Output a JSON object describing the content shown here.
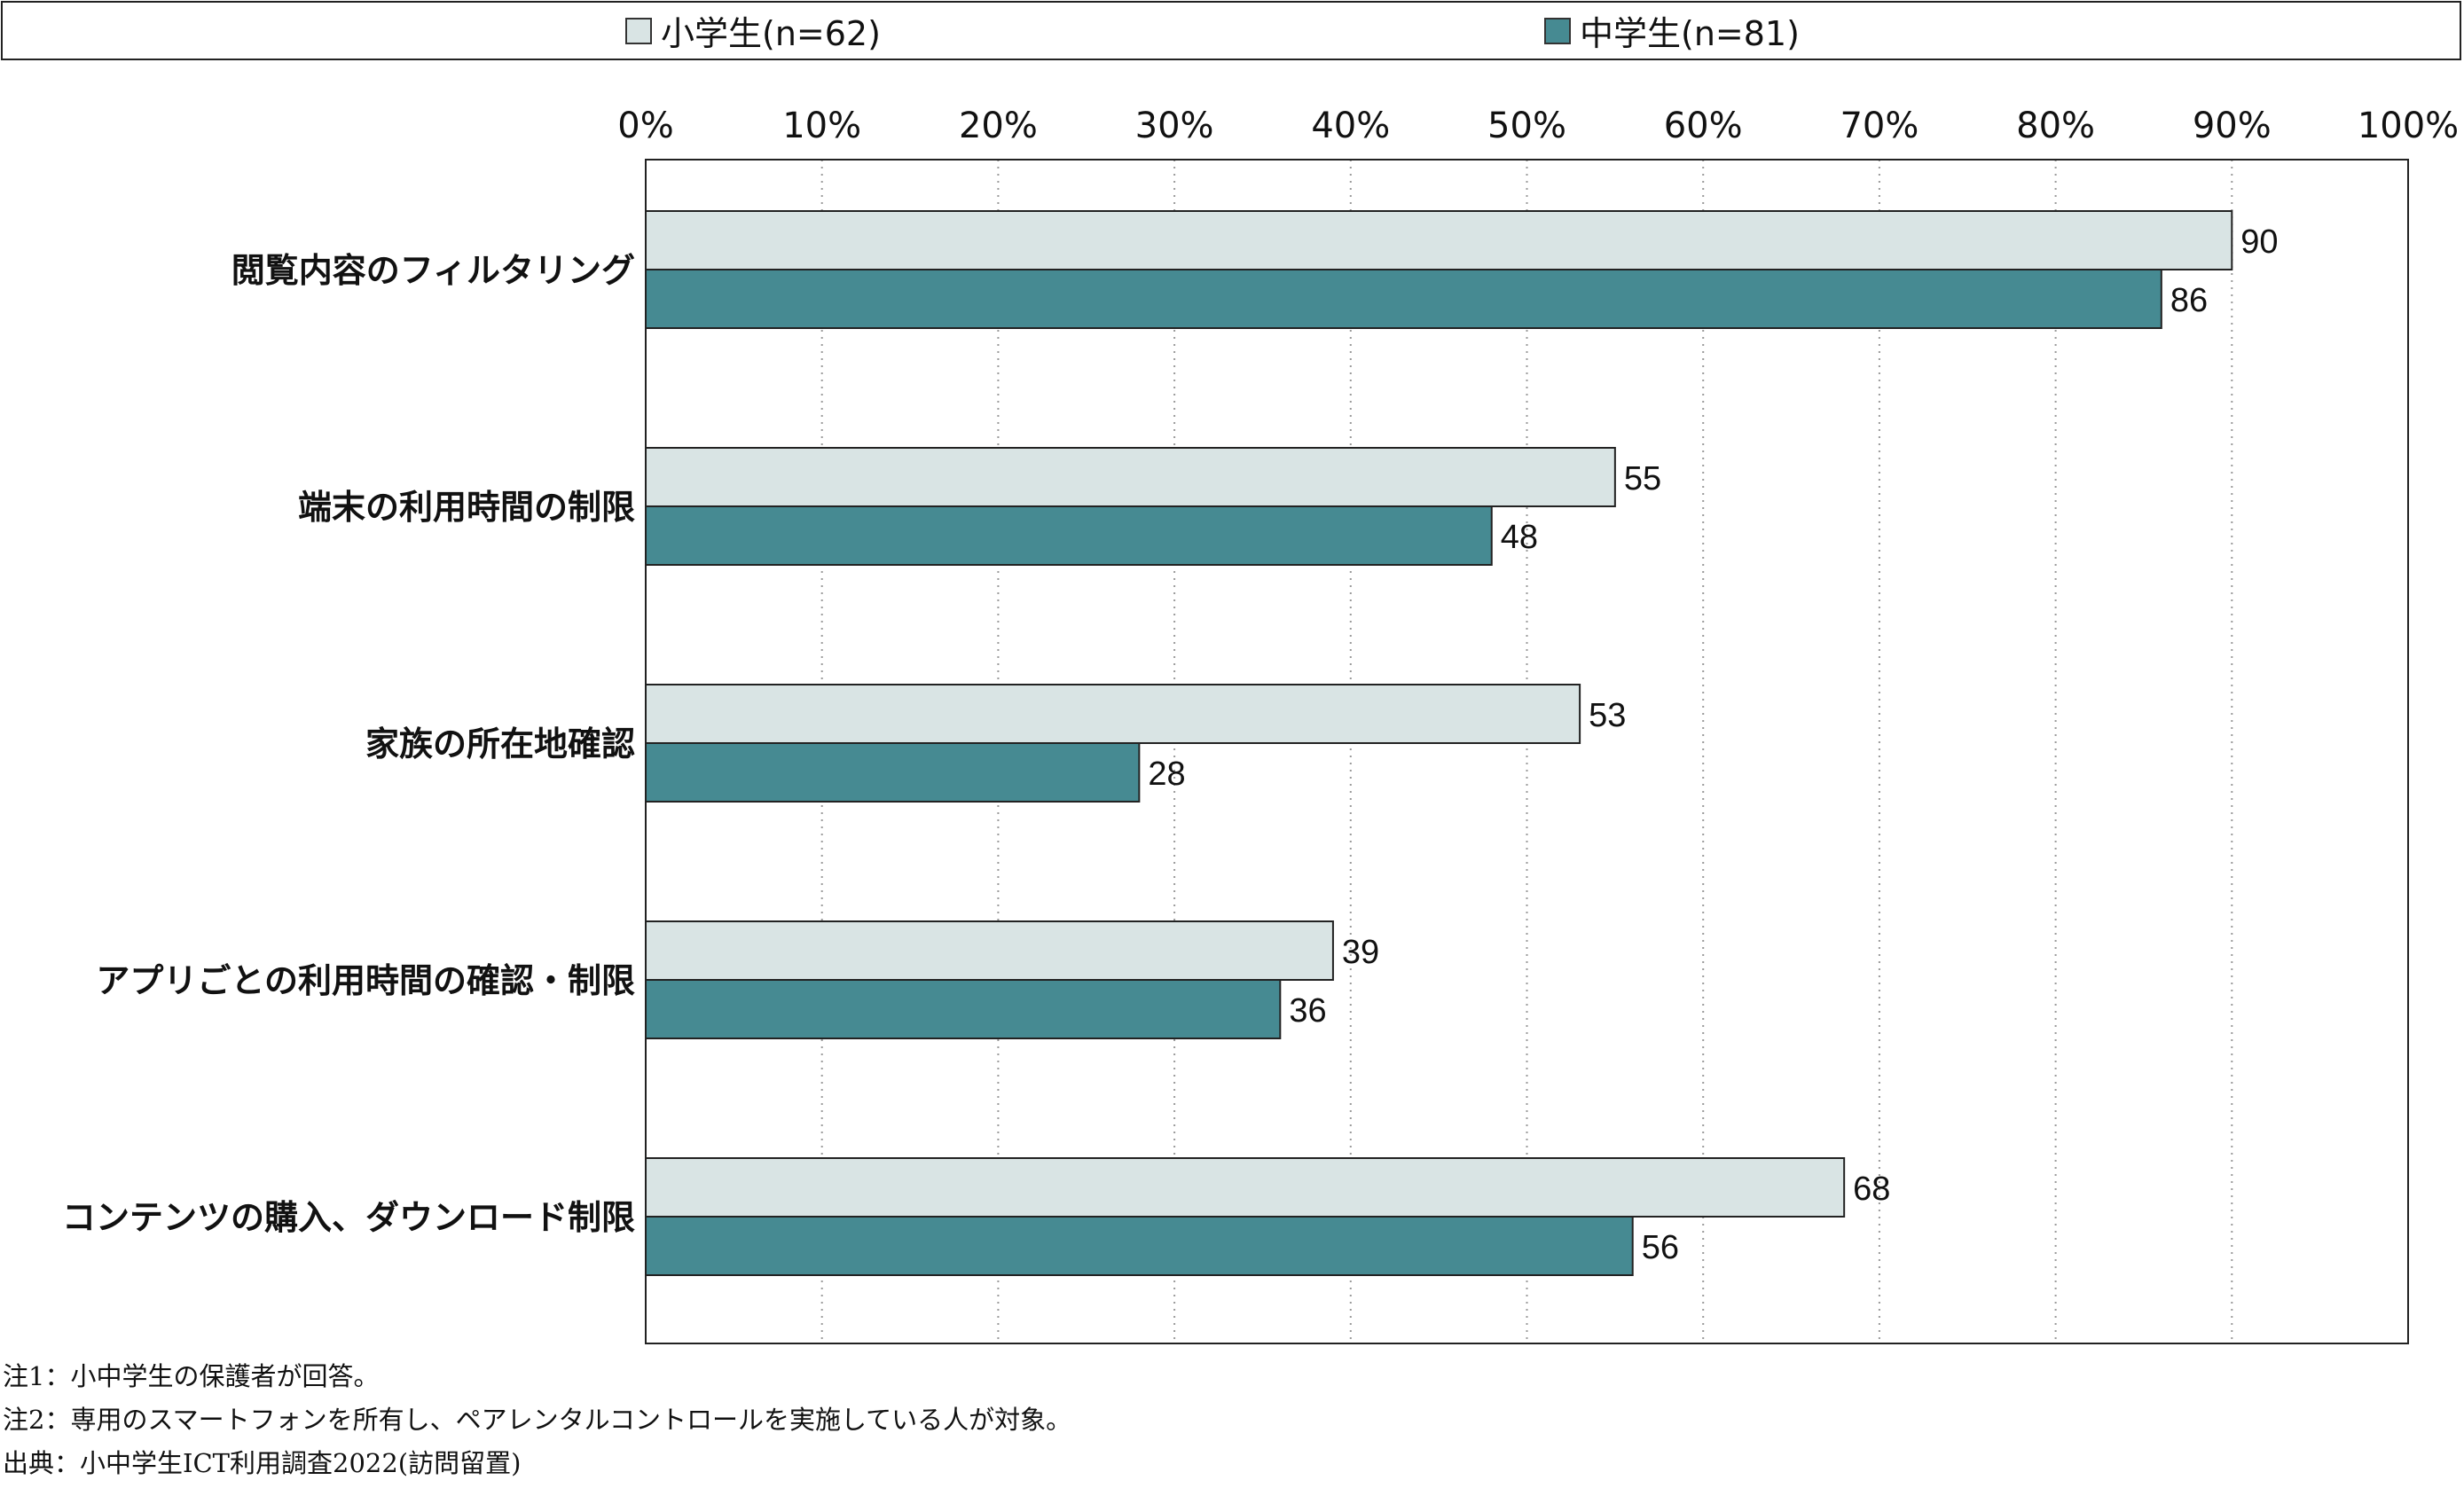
{
  "chart_data": {
    "type": "bar",
    "orientation": "horizontal",
    "categories": [
      "閲覧内容のフィルタリング",
      "端末の利用時間の制限",
      "家族の所在地確認",
      "アプリごとの利用時間の確認・制限",
      "コンテンツの購入、ダウンロード制限"
    ],
    "series": [
      {
        "name": "小学生(n=62)",
        "color": "#d9e4e4",
        "values": [
          90,
          55,
          53,
          39,
          68
        ]
      },
      {
        "name": "中学生(n=81)",
        "color": "#468a92",
        "values": [
          86,
          48,
          28,
          36,
          56
        ]
      }
    ],
    "xlim": [
      0,
      100
    ],
    "x_ticks": [
      "0%",
      "10%",
      "20%",
      "30%",
      "40%",
      "50%",
      "60%",
      "70%",
      "80%",
      "90%",
      "100%"
    ],
    "grid": "vertical dotted",
    "legend_position": "top",
    "title": "",
    "xlabel": "",
    "ylabel": ""
  },
  "legend": {
    "items": [
      {
        "label": "小学生(n=62)",
        "color": "#d9e4e4"
      },
      {
        "label": "中学生(n=81)",
        "color": "#468a92"
      }
    ]
  },
  "notes": [
    "注1：小中学生の保護者が回答。",
    "注2：専用のスマートフォンを所有し、ペアレンタルコントロールを実施している人が対象。",
    "出典：小中学生ICT利用調査2022(訪問留置)"
  ]
}
